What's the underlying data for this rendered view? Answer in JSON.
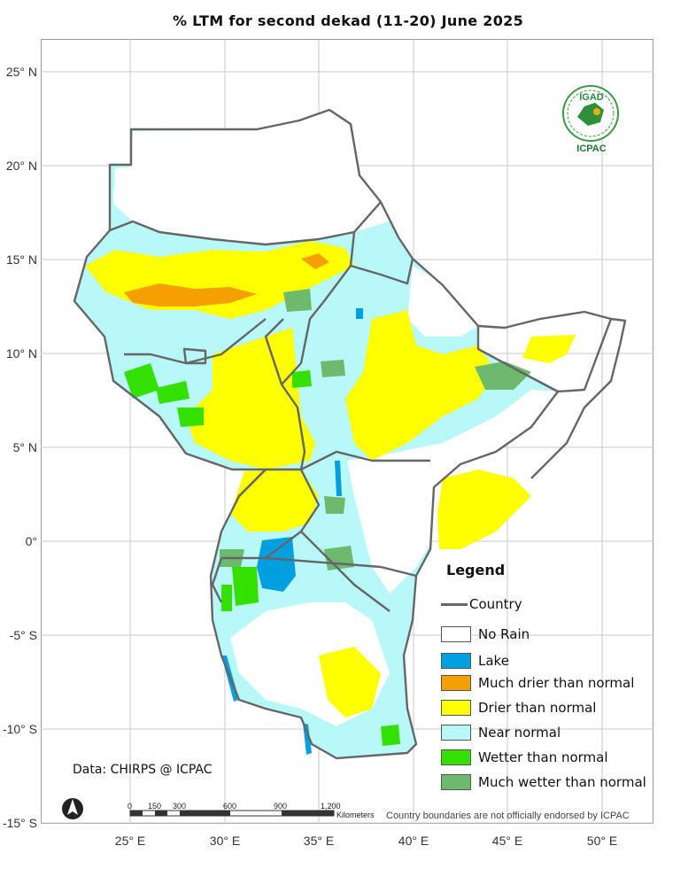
{
  "title": "% LTM for  second dekad (11-20) June 2025",
  "grid": {
    "latitudes": [
      "25° N",
      "20° N",
      "15° N",
      "10° N",
      "5° N",
      "0°",
      "-5° S",
      "-10° S",
      "-15° S"
    ],
    "longitudes": [
      "25° E",
      "30° E",
      "35° E",
      "40° E",
      "45° E",
      "50° E"
    ]
  },
  "legend": {
    "title": "Legend",
    "country_label": "Country",
    "country_color": "#666666",
    "items": [
      {
        "label": "No Rain",
        "color": "#ffffff"
      },
      {
        "label": "Lake",
        "color": "#00a0e0"
      },
      {
        "label": "Much drier than normal",
        "color": "#f5a000"
      },
      {
        "label": "Drier than normal",
        "color": "#ffff00"
      },
      {
        "label": "Near normal",
        "color": "#b8f8f8"
      },
      {
        "label": "Wetter than normal",
        "color": "#33e000"
      },
      {
        "label": "Much wetter than normal",
        "color": "#6db96d"
      }
    ]
  },
  "source": "Data: CHIRPS @ ICPAC",
  "disclaimer": "Country boundaries are not officially endorsed by ICPAC",
  "scale_bar": {
    "ticks": [
      "0",
      "150",
      "300",
      "600",
      "900",
      "1,200"
    ],
    "unit": "Kilometers"
  },
  "logo": {
    "top_text": "IGAD",
    "bottom_text": "ICPAC",
    "icon": "igad-icpac-logo-icon"
  }
}
